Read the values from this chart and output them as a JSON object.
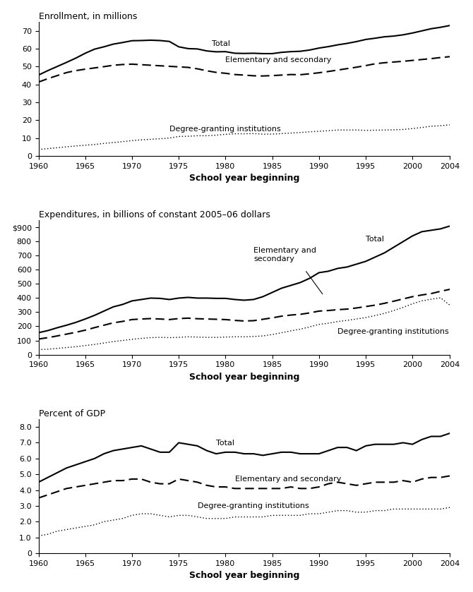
{
  "years": [
    1960,
    1961,
    1962,
    1963,
    1964,
    1965,
    1966,
    1967,
    1968,
    1969,
    1970,
    1971,
    1972,
    1973,
    1974,
    1975,
    1976,
    1977,
    1978,
    1979,
    1980,
    1981,
    1982,
    1983,
    1984,
    1985,
    1986,
    1987,
    1988,
    1989,
    1990,
    1991,
    1992,
    1993,
    1994,
    1995,
    1996,
    1997,
    1998,
    1999,
    2000,
    2001,
    2002,
    2003,
    2004
  ],
  "enroll_total": [
    45.2,
    47.7,
    50.0,
    52.3,
    54.7,
    57.4,
    59.7,
    61.0,
    62.5,
    63.4,
    64.4,
    64.5,
    64.7,
    64.5,
    64.0,
    61.0,
    60.0,
    59.8,
    58.7,
    58.2,
    58.3,
    57.4,
    57.3,
    57.4,
    57.2,
    57.2,
    57.9,
    58.3,
    58.5,
    59.2,
    60.3,
    61.1,
    62.1,
    62.9,
    63.9,
    65.1,
    65.8,
    66.6,
    67.0,
    67.7,
    68.7,
    69.9,
    71.1,
    71.9,
    72.9
  ],
  "enroll_elem_sec": [
    41.3,
    43.2,
    44.9,
    46.6,
    47.7,
    48.5,
    49.2,
    49.9,
    50.7,
    51.1,
    51.3,
    51.0,
    50.7,
    50.4,
    50.1,
    49.8,
    49.5,
    48.7,
    47.6,
    46.7,
    46.2,
    45.5,
    45.2,
    44.8,
    44.7,
    44.9,
    45.2,
    45.5,
    45.4,
    45.9,
    46.5,
    47.2,
    48.0,
    48.8,
    49.6,
    50.5,
    51.5,
    52.1,
    52.5,
    52.9,
    53.4,
    53.9,
    54.4,
    55.0,
    55.5
  ],
  "enroll_degree": [
    3.6,
    4.1,
    4.6,
    5.1,
    5.6,
    6.0,
    6.4,
    7.0,
    7.5,
    8.0,
    8.6,
    9.0,
    9.3,
    9.6,
    10.0,
    10.9,
    11.0,
    11.3,
    11.3,
    11.6,
    12.1,
    12.4,
    12.4,
    12.5,
    12.2,
    12.2,
    12.5,
    12.8,
    13.1,
    13.5,
    13.8,
    14.1,
    14.5,
    14.5,
    14.5,
    14.3,
    14.4,
    14.5,
    14.6,
    14.8,
    15.3,
    15.9,
    16.6,
    16.9,
    17.4
  ],
  "exp_total": [
    155,
    170,
    190,
    208,
    228,
    252,
    278,
    308,
    338,
    355,
    380,
    390,
    400,
    398,
    390,
    400,
    405,
    400,
    400,
    398,
    398,
    390,
    385,
    390,
    410,
    440,
    470,
    490,
    510,
    540,
    580,
    590,
    610,
    620,
    640,
    660,
    690,
    720,
    760,
    800,
    840,
    870,
    880,
    890,
    910
  ],
  "exp_elem_sec": [
    110,
    120,
    132,
    145,
    158,
    173,
    191,
    208,
    225,
    235,
    248,
    252,
    255,
    252,
    248,
    255,
    258,
    254,
    252,
    250,
    248,
    242,
    238,
    240,
    250,
    260,
    272,
    280,
    285,
    295,
    308,
    312,
    318,
    322,
    330,
    340,
    350,
    363,
    378,
    394,
    410,
    422,
    432,
    448,
    462
  ],
  "exp_degree": [
    35,
    38,
    44,
    50,
    56,
    64,
    72,
    82,
    92,
    100,
    108,
    115,
    120,
    122,
    120,
    122,
    126,
    124,
    122,
    122,
    124,
    126,
    126,
    128,
    132,
    142,
    155,
    168,
    180,
    196,
    214,
    222,
    234,
    242,
    252,
    262,
    276,
    292,
    312,
    334,
    360,
    380,
    392,
    402,
    350
  ],
  "gdp_total": [
    4.5,
    4.8,
    5.1,
    5.4,
    5.6,
    5.8,
    6.0,
    6.3,
    6.5,
    6.6,
    6.7,
    6.8,
    6.6,
    6.4,
    6.4,
    7.0,
    6.9,
    6.8,
    6.5,
    6.3,
    6.4,
    6.4,
    6.3,
    6.3,
    6.2,
    6.3,
    6.4,
    6.4,
    6.3,
    6.3,
    6.3,
    6.5,
    6.7,
    6.7,
    6.5,
    6.8,
    6.9,
    6.9,
    6.9,
    7.0,
    6.9,
    7.2,
    7.4,
    7.4,
    7.6
  ],
  "gdp_elem_sec": [
    3.5,
    3.7,
    3.9,
    4.1,
    4.2,
    4.3,
    4.4,
    4.5,
    4.6,
    4.6,
    4.7,
    4.7,
    4.5,
    4.4,
    4.4,
    4.7,
    4.6,
    4.5,
    4.3,
    4.2,
    4.2,
    4.1,
    4.1,
    4.1,
    4.1,
    4.1,
    4.1,
    4.2,
    4.1,
    4.1,
    4.2,
    4.4,
    4.5,
    4.4,
    4.3,
    4.4,
    4.5,
    4.5,
    4.5,
    4.6,
    4.5,
    4.7,
    4.8,
    4.8,
    4.9
  ],
  "gdp_degree": [
    1.1,
    1.2,
    1.4,
    1.5,
    1.6,
    1.7,
    1.8,
    2.0,
    2.1,
    2.2,
    2.4,
    2.5,
    2.5,
    2.4,
    2.3,
    2.4,
    2.4,
    2.3,
    2.2,
    2.2,
    2.2,
    2.3,
    2.3,
    2.3,
    2.3,
    2.4,
    2.4,
    2.4,
    2.4,
    2.5,
    2.5,
    2.6,
    2.7,
    2.7,
    2.6,
    2.6,
    2.7,
    2.7,
    2.8,
    2.8,
    2.8,
    2.8,
    2.8,
    2.8,
    2.9
  ],
  "panel1_title": "Enrollment, in millions",
  "panel2_title": "Expenditures, in billions of constant 2005–06 dollars",
  "panel3_title": "Percent of GDP",
  "xlabel": "School year beginning",
  "label_total": "Total",
  "label_elem_sec": "Elementary and secondary",
  "label_degree": "Degree-granting institutions",
  "color": "#000000",
  "xticks": [
    1960,
    1965,
    1970,
    1975,
    1980,
    1985,
    1990,
    1995,
    2000,
    2004
  ],
  "panel1_ylim": [
    0,
    75
  ],
  "panel1_yticks": [
    0,
    10,
    20,
    30,
    40,
    50,
    60,
    70
  ],
  "panel1_ytick_labels": [
    "0",
    "10",
    "20",
    "30",
    "40",
    "50",
    "60",
    "70"
  ],
  "panel2_ylim": [
    0,
    950
  ],
  "panel2_yticks": [
    0,
    100,
    200,
    300,
    400,
    500,
    600,
    700,
    800,
    900
  ],
  "panel2_ytick_labels": [
    "0",
    "100",
    "200",
    "300",
    "400",
    "500",
    "600",
    "700",
    "800",
    "$900"
  ],
  "panel3_ylim": [
    0,
    8.5
  ],
  "panel3_yticks": [
    0,
    1.0,
    2.0,
    3.0,
    4.0,
    5.0,
    6.0,
    7.0,
    8.0
  ],
  "panel3_ytick_labels": [
    "0",
    "1.0",
    "2.0",
    "3.0",
    "4.0",
    "5.0",
    "6.0",
    "7.0",
    "8.0"
  ]
}
